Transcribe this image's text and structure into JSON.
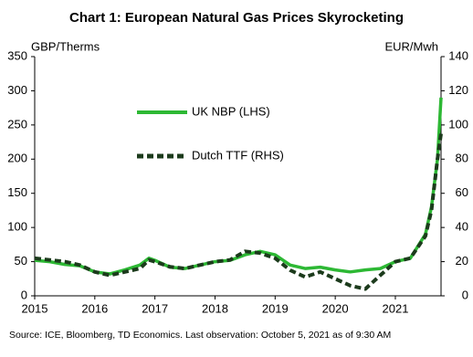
{
  "chart_data": {
    "type": "line",
    "title": "Chart 1: European Natural Gas Prices Skyrocketing",
    "y_label": "GBP/Therms",
    "y2_label": "EUR/Mwh",
    "source": "Source: ICE,  Bloomberg,  TD Economics.  Last observation: October 5, 2021 as of 9:30 AM",
    "x": [
      2015.0,
      2015.25,
      2015.5,
      2015.75,
      2016.0,
      2016.25,
      2016.5,
      2016.75,
      2016.9,
      2017.0,
      2017.25,
      2017.5,
      2017.75,
      2018.0,
      2018.25,
      2018.5,
      2018.75,
      2019.0,
      2019.25,
      2019.5,
      2019.75,
      2020.0,
      2020.25,
      2020.5,
      2020.75,
      2021.0,
      2021.25,
      2021.5,
      2021.6,
      2021.7,
      2021.76
    ],
    "xlim": [
      2015,
      2021.76
    ],
    "xticks": [
      2015,
      2016,
      2017,
      2018,
      2019,
      2020,
      2021
    ],
    "ylim": [
      0,
      350
    ],
    "yticks": [
      0,
      50,
      100,
      150,
      200,
      250,
      300,
      350
    ],
    "y2lim": [
      0,
      140
    ],
    "y2ticks": [
      0,
      20,
      40,
      60,
      80,
      100,
      120,
      140
    ],
    "series": [
      {
        "name": "UK NBP (LHS)",
        "color": "#2db834",
        "dashed": false,
        "values": [
          52,
          50,
          46,
          44,
          35,
          32,
          38,
          45,
          55,
          52,
          42,
          40,
          45,
          50,
          52,
          60,
          65,
          60,
          45,
          40,
          42,
          38,
          35,
          38,
          40,
          50,
          55,
          90,
          130,
          200,
          290
        ]
      },
      {
        "name": "Dutch TTF (RHS)",
        "color": "#1c3b1c",
        "dashed": true,
        "axis": "y2",
        "values": [
          22,
          21,
          20,
          18,
          14,
          12,
          14,
          16,
          21,
          20,
          17,
          16,
          18,
          20,
          21,
          26,
          25,
          22,
          15,
          11,
          14,
          10,
          6,
          4,
          12,
          20,
          22,
          35,
          50,
          80,
          95
        ]
      }
    ]
  }
}
